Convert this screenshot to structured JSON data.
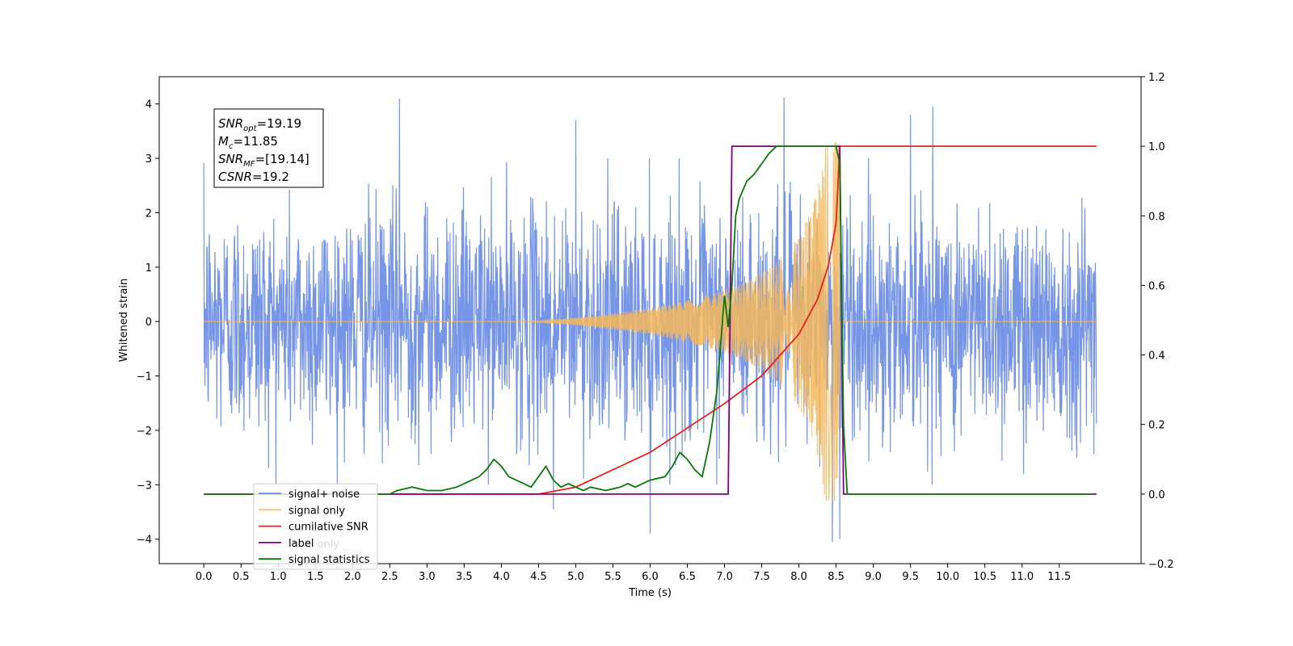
{
  "chart_data": {
    "type": "line",
    "title": "",
    "xlabel": "Time (s)",
    "ylabel": "Whitened strain",
    "y2label": "",
    "xlim": [
      -0.6,
      12.6
    ],
    "ylim": [
      -4.45,
      4.5
    ],
    "y2lim": [
      -0.2,
      1.2
    ],
    "x_ticks": [
      0.0,
      0.5,
      1.0,
      1.5,
      2.0,
      2.5,
      3.0,
      3.5,
      4.0,
      4.5,
      5.0,
      5.5,
      6.0,
      6.5,
      7.0,
      7.5,
      8.0,
      8.5,
      9.0,
      9.5,
      10.0,
      10.5,
      11.0,
      11.5
    ],
    "x_tick_labels": [
      "0.0",
      "0.5",
      "1.0",
      "1.5",
      "2.0",
      "2.5",
      "3.0",
      "3.5",
      "4.0",
      "4.5",
      "5.0",
      "5.5",
      "6.0",
      "6.5",
      "7.0",
      "7.5",
      "8.0",
      "8.5",
      "9.0",
      "9.5",
      "10.0",
      "10.5",
      "11.0",
      "11.5"
    ],
    "y_ticks": [
      -4,
      -3,
      -2,
      -1,
      0,
      1,
      2,
      3,
      4
    ],
    "y_tick_labels": [
      "−4",
      "−3",
      "−2",
      "−1",
      "0",
      "1",
      "2",
      "3",
      "4"
    ],
    "y2_ticks": [
      -0.2,
      0.0,
      0.2,
      0.4,
      0.6,
      0.8,
      1.0,
      1.2
    ],
    "y2_tick_labels": [
      "−0.2",
      "0.0",
      "0.2",
      "0.4",
      "0.6",
      "0.8",
      "1.0",
      "1.2"
    ],
    "grid": false,
    "legend_position": "lower-left",
    "annotation": {
      "lines": [
        {
          "name": "SNR",
          "sub": "opt",
          "value": "=19.19"
        },
        {
          "name": "M",
          "sub": "c",
          "value": "=11.85"
        },
        {
          "name": "SNR",
          "sub": "MF",
          "value": "=[19.14]"
        },
        {
          "name": "CSNR",
          "sub": "",
          "value": "=19.2"
        }
      ]
    },
    "series": [
      {
        "name": "signal+ noise",
        "axis": "left",
        "color": "#6f8fe6",
        "x_range": [
          0.0,
          12.0
        ],
        "noise_sigma": 1.05,
        "peaks": [
          [
            2.63,
            4.1
          ],
          [
            7.8,
            4.12
          ],
          [
            8.45,
            -4.05
          ],
          [
            8.55,
            -4.0
          ],
          [
            6.0,
            -3.9
          ],
          [
            4.7,
            -3.45
          ],
          [
            5.0,
            3.7
          ],
          [
            9.8,
            3.95
          ],
          [
            9.5,
            3.8
          ]
        ]
      },
      {
        "name": "signal only",
        "axis": "left",
        "color": "#f5b75a",
        "chirp_start": 4.3,
        "chirp_end": 8.55,
        "peak_amplitude": 3.3
      },
      {
        "name": "cumilative SNR",
        "axis": "right",
        "color": "#e8231c",
        "x": [
          0.0,
          4.5,
          5.0,
          5.5,
          6.0,
          6.5,
          7.0,
          7.5,
          8.0,
          8.25,
          8.4,
          8.5,
          8.55,
          12.0
        ],
        "y": [
          0.0,
          0.0,
          0.02,
          0.07,
          0.12,
          0.19,
          0.26,
          0.34,
          0.46,
          0.56,
          0.66,
          0.78,
          1.0,
          1.0
        ]
      },
      {
        "name": "label",
        "axis": "right",
        "color": "#800080",
        "x": [
          0.0,
          7.05,
          7.1,
          8.55,
          8.6,
          12.0
        ],
        "y": [
          0.0,
          0.0,
          1.0,
          1.0,
          0.0,
          0.0
        ]
      },
      {
        "name": "signal statistics",
        "axis": "right",
        "color": "#087a08",
        "x": [
          0.0,
          2.5,
          2.6,
          2.8,
          3.0,
          3.2,
          3.4,
          3.5,
          3.6,
          3.7,
          3.8,
          3.9,
          4.0,
          4.1,
          4.2,
          4.3,
          4.4,
          4.5,
          4.6,
          4.7,
          4.8,
          4.9,
          5.0,
          5.1,
          5.2,
          5.4,
          5.6,
          5.7,
          5.8,
          6.0,
          6.2,
          6.3,
          6.4,
          6.5,
          6.6,
          6.7,
          6.8,
          6.9,
          7.0,
          7.05,
          7.1,
          7.15,
          7.2,
          7.3,
          7.4,
          7.5,
          7.6,
          7.7,
          7.8,
          8.0,
          8.4,
          8.5,
          8.55,
          8.6,
          8.65,
          11.95
        ],
        "y": [
          0.0,
          0.0,
          0.01,
          0.02,
          0.01,
          0.01,
          0.02,
          0.03,
          0.04,
          0.05,
          0.07,
          0.1,
          0.08,
          0.05,
          0.04,
          0.03,
          0.02,
          0.05,
          0.08,
          0.04,
          0.02,
          0.03,
          0.02,
          0.01,
          0.02,
          0.01,
          0.02,
          0.03,
          0.02,
          0.04,
          0.05,
          0.08,
          0.12,
          0.1,
          0.07,
          0.05,
          0.15,
          0.3,
          0.57,
          0.48,
          0.6,
          0.8,
          0.85,
          0.9,
          0.92,
          0.95,
          0.98,
          1.0,
          1.0,
          1.0,
          1.0,
          1.0,
          0.95,
          0.2,
          0.0,
          0.0
        ]
      },
      {
        "name": "label only",
        "axis": "right",
        "color": "none",
        "legend_only": true
      }
    ]
  }
}
